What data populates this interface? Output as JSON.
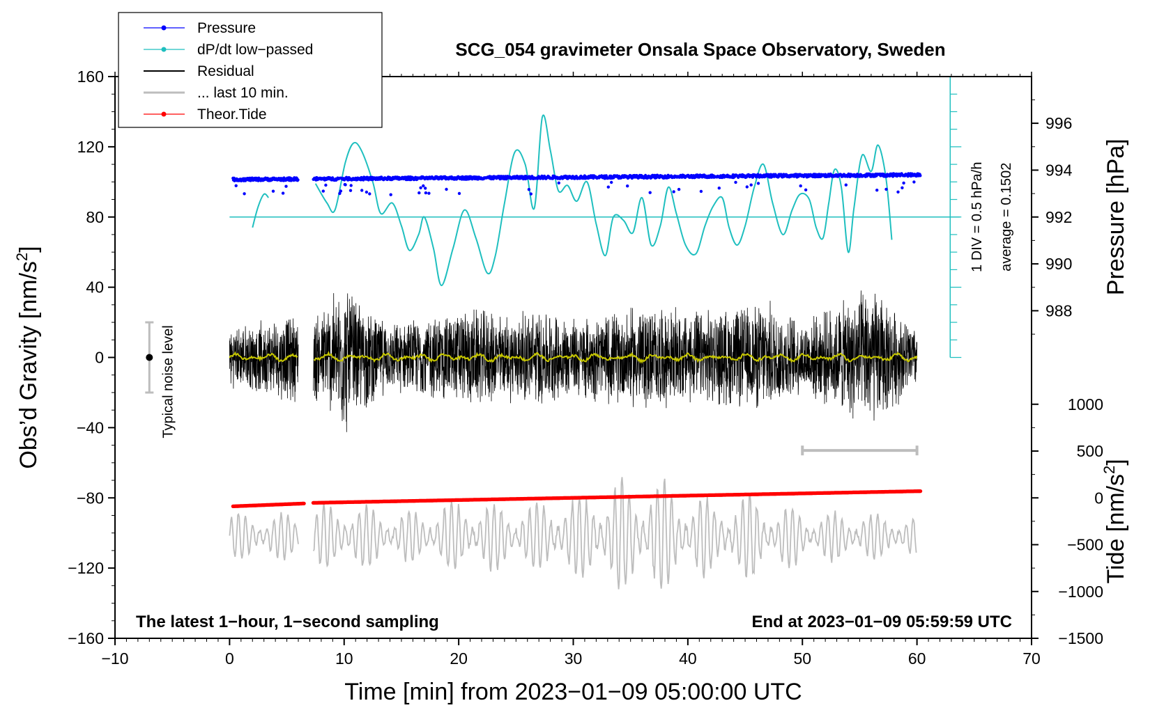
{
  "chart_data": {
    "type": "line",
    "title": "SCG_054 gravimeter Onsala Space Observatory, Sweden",
    "xlabel": "Time [min] from 2023−01−09 05:00:00 UTC",
    "ylabel_left": "Obs’d Gravity [nm/s²]",
    "ylabel_left_main": "Obs’d Gravity [nm/s",
    "ylabel_left_sup": "2",
    "ylabel_left_end": "]",
    "ylabel_pressure": "Pressure [hPa]",
    "ylabel_tide_main": "Tide [nm/s",
    "ylabel_tide_sup": "2",
    "ylabel_tide_end": "]",
    "xlim": [
      -10,
      70
    ],
    "ylim": [
      -160,
      160
    ],
    "x_ticks": [
      -10,
      0,
      10,
      20,
      30,
      40,
      50,
      60,
      70
    ],
    "x_tick_labels": [
      "−10",
      "0",
      "10",
      "20",
      "30",
      "40",
      "50",
      "60",
      "70"
    ],
    "y_ticks": [
      160,
      120,
      80,
      40,
      0,
      -40,
      -80,
      -120,
      -160
    ],
    "y_tick_labels": [
      "160",
      "120",
      "80",
      "40",
      "0",
      "−40",
      "−80",
      "−120",
      "−160"
    ],
    "pressure_axis": {
      "ticks": [
        996,
        994,
        992,
        990,
        988
      ],
      "tick_labels": [
        "996",
        "994",
        "992",
        "990",
        "988"
      ],
      "mapping": {
        "p1": 992,
        "g1": 80,
        "p2": 994,
        "g2": 106.7
      }
    },
    "tide_axis": {
      "ticks": [
        1000,
        500,
        0,
        -500,
        -1000,
        -1500
      ],
      "tick_labels": [
        "1000",
        "500",
        "0",
        "−500",
        "−1000",
        "−1500"
      ],
      "mapping": {
        "t1": 0,
        "g1": -80,
        "t2": -1500,
        "g2": -160
      }
    },
    "dpdt_scale": {
      "zero_level_gravity": 80,
      "top_gravity": 160,
      "bottom_gravity": 0,
      "label_div": "1 DIV = 0.5 hPa/h",
      "label_avg": "average = 0.1502"
    },
    "noise_bar": {
      "x": -7,
      "center": 0,
      "low": -20,
      "high": 20,
      "label": "Typical noise level"
    },
    "last10_bar": {
      "x_start": 50,
      "x_end": 60,
      "y": -53
    },
    "note_left": "The latest 1−hour, 1−second sampling",
    "note_right": "End at 2023−01−09 05:59:59 UTC",
    "gaps": [
      [
        6,
        7.3
      ]
    ],
    "series": [
      {
        "name": "Pressure",
        "color": "#0000ff",
        "style": "dots",
        "x_range": [
          0.3,
          60.3
        ],
        "values_hPa": {
          "start": 993.6,
          "end": 993.8,
          "jitter": 0.12
        }
      },
      {
        "name": "dP/dt low−passed",
        "color": "#1fbfbf",
        "style": "line",
        "x": [
          2.0,
          2.5,
          3.0,
          3.4,
          7.5,
          8.5,
          9.2,
          10.1,
          10.8,
          11.5,
          12.5,
          13.2,
          14.2,
          15.0,
          15.7,
          16.5,
          17.0,
          17.8,
          18.5,
          19.5,
          20.5,
          21.5,
          22.5,
          23.2,
          24.0,
          24.9,
          25.8,
          26.6,
          27.3,
          28.0,
          28.7,
          29.5,
          30.3,
          31.2,
          32.0,
          32.8,
          33.5,
          34.4,
          35.2,
          36.0,
          36.8,
          37.6,
          38.3,
          39.0,
          39.8,
          40.7,
          41.5,
          42.2,
          43.0,
          43.6,
          44.3,
          45.0,
          45.8,
          46.6,
          47.4,
          48.3,
          49.1,
          49.8,
          50.6,
          51.2,
          51.8,
          52.3,
          52.8,
          53.4,
          54.0,
          54.5,
          55.2,
          56.0,
          56.6,
          57.3,
          57.8
        ],
        "y": [
          74,
          86,
          93,
          91,
          99,
          88,
          84,
          111,
          122,
          118,
          100,
          82,
          88,
          75,
          61,
          70,
          80,
          62,
          41,
          62,
          84,
          68,
          48,
          58,
          88,
          117,
          110,
          85,
          137,
          118,
          95,
          98,
          89,
          100,
          76,
          58,
          80,
          78,
          71,
          91,
          64,
          75,
          97,
          82,
          64,
          59,
          75,
          86,
          91,
          74,
          64,
          75,
          97,
          110,
          88,
          70,
          84,
          93,
          90,
          74,
          68,
          88,
          107,
          97,
          60,
          85,
          115,
          106,
          121,
          102,
          67
        ]
      },
      {
        "name": "Residual",
        "color": "#000000",
        "style": "line",
        "x_range": [
          0,
          60
        ],
        "envelope": [
          [
            0,
            18
          ],
          [
            3,
            22
          ],
          [
            5,
            26
          ],
          [
            8,
            28
          ],
          [
            10,
            48
          ],
          [
            11,
            36
          ],
          [
            14,
            20
          ],
          [
            18,
            26
          ],
          [
            21,
            30
          ],
          [
            24,
            26
          ],
          [
            27,
            30
          ],
          [
            30,
            24
          ],
          [
            34,
            28
          ],
          [
            36,
            32
          ],
          [
            40,
            28
          ],
          [
            44,
            30
          ],
          [
            47,
            34
          ],
          [
            50,
            22
          ],
          [
            53,
            32
          ],
          [
            56,
            44
          ],
          [
            58,
            30
          ],
          [
            60,
            18
          ]
        ]
      },
      {
        "name": "... last 10 min.",
        "color": "#bdbdbd",
        "style": "line",
        "x_range": [
          0,
          60
        ],
        "baseline": -102,
        "envelope": [
          [
            0,
            12
          ],
          [
            5,
            12
          ],
          [
            10,
            18
          ],
          [
            15,
            12
          ],
          [
            20,
            18
          ],
          [
            25,
            16
          ],
          [
            30,
            20
          ],
          [
            35,
            30
          ],
          [
            38,
            28
          ],
          [
            42,
            18
          ],
          [
            46,
            22
          ],
          [
            48,
            16
          ],
          [
            52,
            12
          ],
          [
            56,
            12
          ],
          [
            60,
            10
          ]
        ]
      },
      {
        "name": "Smoothed residual",
        "color": "#c8c800",
        "style": "line",
        "x_range": [
          0,
          60
        ],
        "amplitude": 2
      },
      {
        "name": "Theor.Tide",
        "color": "#ff0000",
        "style": "dots",
        "x": [
          0.3,
          6.5,
          7.3,
          60.3
        ],
        "values_nm_s2": [
          -90,
          -60,
          -53,
          72
        ]
      }
    ],
    "legend": [
      {
        "label": "Pressure",
        "color": "#0000ff",
        "marker": true
      },
      {
        "label": "dP/dt low−passed",
        "color": "#1fbfbf",
        "marker": true
      },
      {
        "label": "Residual",
        "color": "#000000",
        "marker": false
      },
      {
        "label": "... last 10 min.",
        "color": "#bdbdbd",
        "marker": false
      },
      {
        "label": "Theor.Tide",
        "color": "#ff0000",
        "marker": true
      }
    ]
  }
}
